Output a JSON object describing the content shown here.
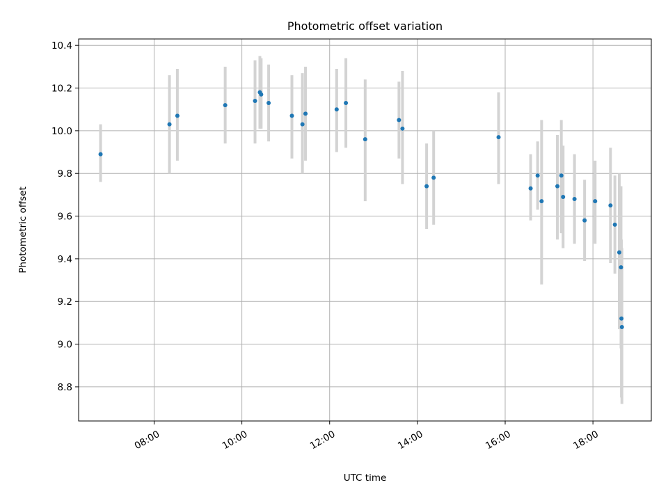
{
  "chart_data": {
    "type": "scatter",
    "title": "Photometric offset variation",
    "xlabel": "UTC time",
    "ylabel": "Photometric offset",
    "x_unit": "hours (UTC)",
    "xlim": [
      6.28,
      19.33
    ],
    "ylim": [
      8.64,
      10.43
    ],
    "xticks": [
      {
        "value": 8,
        "label": "08:00"
      },
      {
        "value": 10,
        "label": "10:00"
      },
      {
        "value": 12,
        "label": "12:00"
      },
      {
        "value": 14,
        "label": "14:00"
      },
      {
        "value": 16,
        "label": "16:00"
      },
      {
        "value": 18,
        "label": "18:00"
      }
    ],
    "yticks": [
      {
        "value": 8.8,
        "label": "8.8"
      },
      {
        "value": 9.0,
        "label": "9.0"
      },
      {
        "value": 9.2,
        "label": "9.2"
      },
      {
        "value": 9.4,
        "label": "9.4"
      },
      {
        "value": 9.6,
        "label": "9.6"
      },
      {
        "value": 9.8,
        "label": "9.8"
      },
      {
        "value": 10.0,
        "label": "10.0"
      },
      {
        "value": 10.2,
        "label": "10.2"
      },
      {
        "value": 10.4,
        "label": "10.4"
      }
    ],
    "grid": true,
    "point_color": "#1f77b4",
    "errorbar_color": "#d3d3d3",
    "points": [
      {
        "x": 6.78,
        "y": 9.89,
        "lo": 9.76,
        "hi": 10.03
      },
      {
        "x": 8.35,
        "y": 10.03,
        "lo": 9.8,
        "hi": 10.26
      },
      {
        "x": 8.53,
        "y": 10.07,
        "lo": 9.86,
        "hi": 10.29
      },
      {
        "x": 9.62,
        "y": 10.12,
        "lo": 9.94,
        "hi": 10.3
      },
      {
        "x": 10.3,
        "y": 10.14,
        "lo": 9.94,
        "hi": 10.33
      },
      {
        "x": 10.41,
        "y": 10.18,
        "lo": 10.01,
        "hi": 10.35
      },
      {
        "x": 10.44,
        "y": 10.17,
        "lo": 10.01,
        "hi": 10.34
      },
      {
        "x": 10.61,
        "y": 10.13,
        "lo": 9.95,
        "hi": 10.31
      },
      {
        "x": 11.14,
        "y": 10.07,
        "lo": 9.87,
        "hi": 10.26
      },
      {
        "x": 11.38,
        "y": 10.03,
        "lo": 9.8,
        "hi": 10.27
      },
      {
        "x": 11.45,
        "y": 10.08,
        "lo": 9.86,
        "hi": 10.3
      },
      {
        "x": 12.16,
        "y": 10.1,
        "lo": 9.9,
        "hi": 10.29
      },
      {
        "x": 12.37,
        "y": 10.13,
        "lo": 9.92,
        "hi": 10.34
      },
      {
        "x": 12.81,
        "y": 9.96,
        "lo": 9.67,
        "hi": 10.24
      },
      {
        "x": 13.58,
        "y": 10.05,
        "lo": 9.87,
        "hi": 10.23
      },
      {
        "x": 13.66,
        "y": 10.01,
        "lo": 9.75,
        "hi": 10.28
      },
      {
        "x": 14.21,
        "y": 9.74,
        "lo": 9.54,
        "hi": 9.94
      },
      {
        "x": 14.37,
        "y": 9.78,
        "lo": 9.56,
        "hi": 10.0
      },
      {
        "x": 15.85,
        "y": 9.97,
        "lo": 9.75,
        "hi": 10.18
      },
      {
        "x": 16.58,
        "y": 9.73,
        "lo": 9.58,
        "hi": 9.89
      },
      {
        "x": 16.74,
        "y": 9.79,
        "lo": 9.63,
        "hi": 9.95
      },
      {
        "x": 16.83,
        "y": 9.67,
        "lo": 9.28,
        "hi": 10.05
      },
      {
        "x": 17.19,
        "y": 9.74,
        "lo": 9.49,
        "hi": 9.98
      },
      {
        "x": 17.28,
        "y": 9.79,
        "lo": 9.52,
        "hi": 10.05
      },
      {
        "x": 17.32,
        "y": 9.69,
        "lo": 9.45,
        "hi": 9.93
      },
      {
        "x": 17.58,
        "y": 9.68,
        "lo": 9.47,
        "hi": 9.89
      },
      {
        "x": 17.81,
        "y": 9.58,
        "lo": 9.39,
        "hi": 9.77
      },
      {
        "x": 18.05,
        "y": 9.67,
        "lo": 9.47,
        "hi": 9.86
      },
      {
        "x": 18.4,
        "y": 9.65,
        "lo": 9.38,
        "hi": 9.92
      },
      {
        "x": 18.5,
        "y": 9.56,
        "lo": 9.33,
        "hi": 9.79
      },
      {
        "x": 18.6,
        "y": 9.43,
        "lo": 9.07,
        "hi": 9.8
      },
      {
        "x": 18.64,
        "y": 9.36,
        "lo": 8.98,
        "hi": 9.74
      },
      {
        "x": 18.65,
        "y": 9.12,
        "lo": 8.75,
        "hi": 9.49
      },
      {
        "x": 18.66,
        "y": 9.08,
        "lo": 8.72,
        "hi": 9.45
      }
    ]
  }
}
